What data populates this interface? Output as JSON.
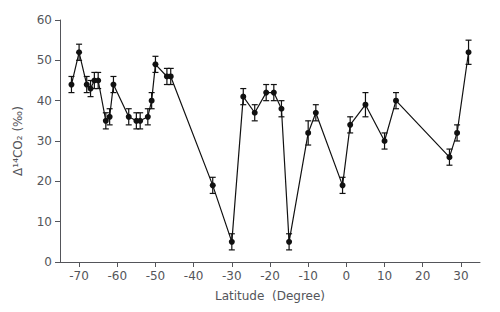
{
  "chart_data": {
    "type": "line",
    "x": [
      -72,
      -70,
      -68,
      -67,
      -66,
      -65,
      -63,
      -62,
      -61,
      -57,
      -55,
      -54,
      -52,
      -51,
      -50,
      -47,
      -46,
      -35,
      -30,
      -27,
      -24,
      -21,
      -19,
      -17,
      -15,
      -10,
      -8,
      -1,
      1,
      5,
      10,
      13,
      27,
      29,
      32
    ],
    "values": [
      44,
      52,
      44,
      43,
      45,
      45,
      35,
      36,
      44,
      36,
      35,
      35,
      36,
      40,
      49,
      46,
      46,
      19,
      5,
      41,
      37,
      42,
      42,
      38,
      5,
      32,
      37,
      19,
      34,
      39,
      30,
      40,
      26,
      32,
      52
    ],
    "yerr": [
      2,
      2,
      2,
      2,
      2,
      2,
      2,
      2,
      2,
      2,
      2,
      2,
      2,
      2,
      2,
      2,
      2,
      2,
      2,
      2,
      2,
      2,
      2,
      2,
      2,
      3,
      2,
      2,
      2,
      3,
      2,
      2,
      2,
      2,
      3
    ],
    "xlabel": "Latitude  (Degree)",
    "ylabel": "Δ¹⁴CO₂ (‰)",
    "xlim": [
      -75,
      35
    ],
    "ylim": [
      0,
      60
    ],
    "xticks": [
      -70,
      -60,
      -50,
      -40,
      -30,
      -20,
      -10,
      0,
      10,
      20,
      30
    ],
    "yticks": [
      0,
      10,
      20,
      30,
      40,
      50,
      60
    ],
    "color": "#111111",
    "marker": "circle",
    "line_style": "solid",
    "grid": false
  }
}
